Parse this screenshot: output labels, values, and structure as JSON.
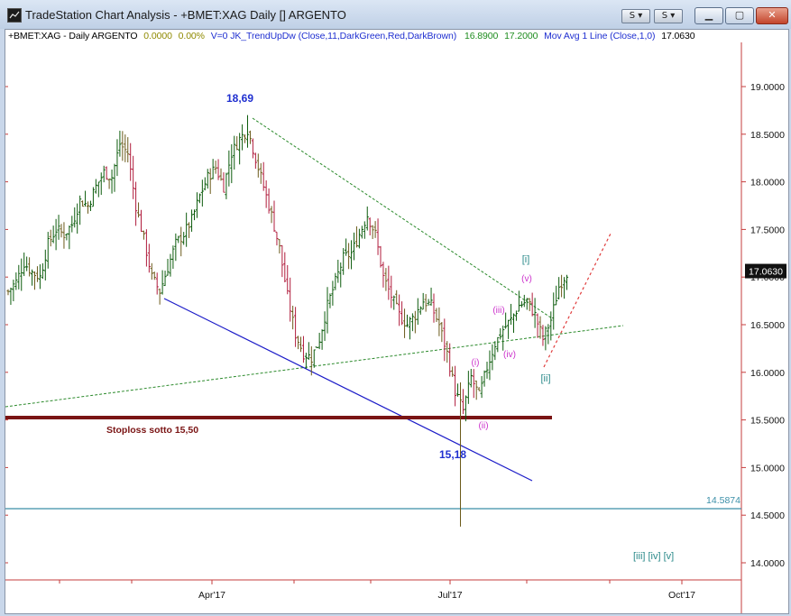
{
  "window": {
    "title": "TradeStation Chart Analysis - +BMET:XAG Daily [] ARGENTO",
    "toolbar_buttons": [
      "S",
      "S"
    ],
    "controls": [
      "minimize",
      "maximize",
      "close"
    ]
  },
  "header": {
    "symbol": "+BMET:XAG - Daily  ARGENTO",
    "change": "0.0000",
    "change_pct": "0.00%",
    "indicator": "V=0  JK_TrendUpDw (Close,11,DarkGreen,Red,DarkBrown)",
    "value1": "16.8900",
    "value2": "17.2000",
    "ma_label": "Mov Avg 1 Line (Close,1,0)",
    "ma_value": "17.0630"
  },
  "chart_data": {
    "type": "candlestick",
    "y_axis": {
      "range": [
        13.6,
        19.4
      ],
      "ticks": [
        "19.0000",
        "18.5000",
        "18.0000",
        "17.5000",
        "17.0000",
        "16.5000",
        "16.0000",
        "15.5000",
        "15.0000",
        "14.5000",
        "14.0000"
      ]
    },
    "x_axis": {
      "labels": [
        "Apr'17",
        "Jul'17",
        "Oct'17"
      ]
    },
    "price_path": [
      [
        0,
        16.85
      ],
      [
        3,
        16.95
      ],
      [
        6,
        17.15
      ],
      [
        9,
        17.05
      ],
      [
        12,
        17.0
      ],
      [
        15,
        17.35
      ],
      [
        18,
        17.5
      ],
      [
        21,
        17.45
      ],
      [
        24,
        17.55
      ],
      [
        27,
        17.8
      ],
      [
        30,
        17.75
      ],
      [
        33,
        17.95
      ],
      [
        36,
        18.1
      ],
      [
        39,
        18.05
      ],
      [
        42,
        18.4
      ],
      [
        45,
        18.3
      ],
      [
        48,
        17.75
      ],
      [
        51,
        17.4
      ],
      [
        54,
        17.0
      ],
      [
        57,
        16.85
      ],
      [
        60,
        17.1
      ],
      [
        63,
        17.35
      ],
      [
        66,
        17.45
      ],
      [
        69,
        17.6
      ],
      [
        72,
        17.85
      ],
      [
        75,
        18.05
      ],
      [
        78,
        18.15
      ],
      [
        81,
        17.95
      ],
      [
        84,
        18.3
      ],
      [
        87,
        18.45
      ],
      [
        90,
        18.55
      ],
      [
        93,
        18.25
      ],
      [
        96,
        17.95
      ],
      [
        99,
        17.65
      ],
      [
        102,
        17.3
      ],
      [
        105,
        16.8
      ],
      [
        108,
        16.4
      ],
      [
        111,
        16.2
      ],
      [
        114,
        16.15
      ],
      [
        117,
        16.35
      ],
      [
        120,
        16.7
      ],
      [
        123,
        16.95
      ],
      [
        126,
        17.2
      ],
      [
        129,
        17.25
      ],
      [
        132,
        17.45
      ],
      [
        135,
        17.65
      ],
      [
        138,
        17.45
      ],
      [
        141,
        17.0
      ],
      [
        144,
        16.8
      ],
      [
        147,
        16.6
      ],
      [
        150,
        16.5
      ],
      [
        153,
        16.6
      ],
      [
        156,
        16.75
      ],
      [
        159,
        16.7
      ],
      [
        162,
        16.5
      ],
      [
        165,
        16.2
      ],
      [
        168,
        15.8
      ],
      [
        171,
        15.6
      ],
      [
        174,
        15.95
      ],
      [
        177,
        15.75
      ],
      [
        180,
        16.05
      ],
      [
        183,
        16.3
      ],
      [
        186,
        16.45
      ],
      [
        189,
        16.55
      ],
      [
        192,
        16.7
      ],
      [
        195,
        16.75
      ],
      [
        198,
        16.6
      ],
      [
        201,
        16.35
      ],
      [
        204,
        16.55
      ],
      [
        207,
        16.9
      ],
      [
        210,
        17.05
      ]
    ],
    "annotations": [
      {
        "text": "18,69",
        "color": "#1f2fd0"
      },
      {
        "text": "15,18",
        "color": "#1f2fd0"
      },
      {
        "text": "Stoploss  sotto 15,50",
        "color": "#7a1414"
      },
      {
        "text": "[i]",
        "color": "#2b8a8a"
      },
      {
        "text": "[ii]",
        "color": "#2b8a8a"
      },
      {
        "text": "[iii] [iv] [v]",
        "color": "#2b8a8a"
      },
      {
        "text": "(i)",
        "color": "#cc33cc"
      },
      {
        "text": "(ii)",
        "color": "#cc33cc"
      },
      {
        "text": "(iii)",
        "color": "#cc33cc"
      },
      {
        "text": "(iv)",
        "color": "#cc33cc"
      },
      {
        "text": "(v)",
        "color": "#cc33cc"
      }
    ],
    "levels": {
      "stoploss": 15.5,
      "horizontal_line": 14.5874,
      "horizontal_line_label": "14.5874",
      "last_price_label": "17.0630"
    }
  }
}
